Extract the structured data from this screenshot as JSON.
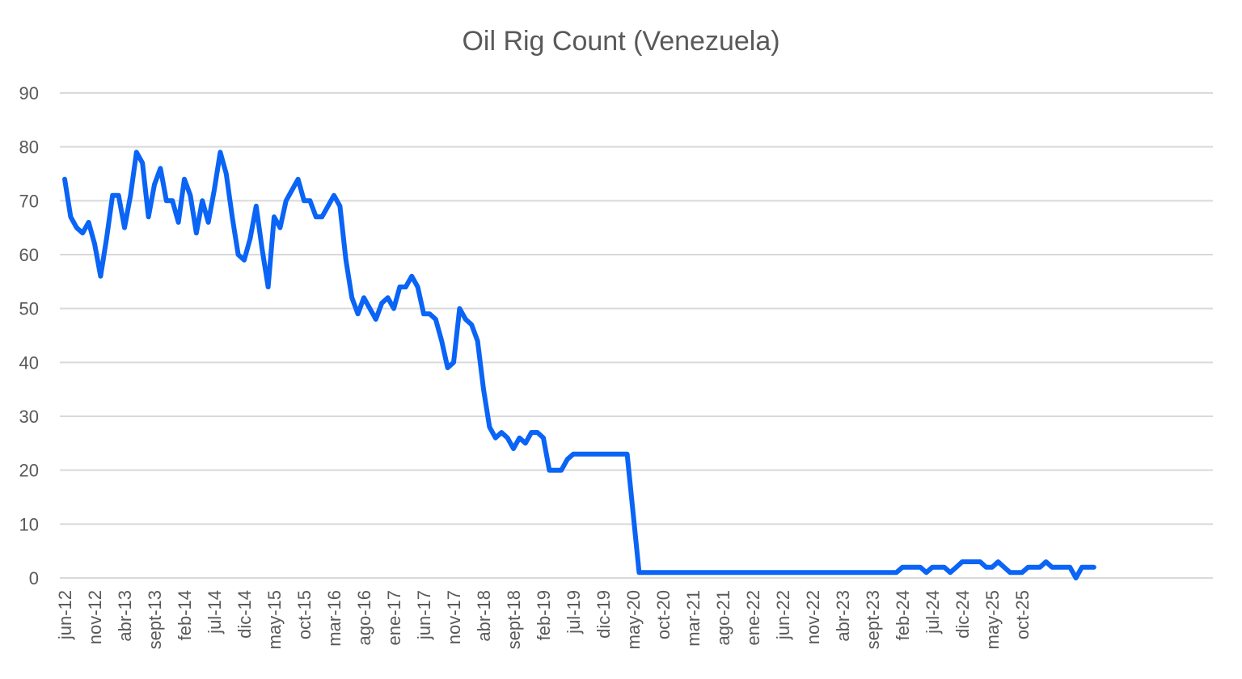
{
  "chart_data": {
    "type": "line",
    "title": "Oil Rig Count (Venezuela)",
    "xlabel": "",
    "ylabel": "",
    "ylim": [
      0,
      90
    ],
    "yticks": [
      0,
      10,
      20,
      30,
      40,
      50,
      60,
      70,
      80,
      90
    ],
    "grid": true,
    "legend": "none",
    "start_month": "2012-06",
    "end_month": "2026-01",
    "x_tick_labels": [
      "jun-12",
      "nov-12",
      "abr-13",
      "sept-13",
      "feb-14",
      "jul-14",
      "dic-14",
      "may-15",
      "oct-15",
      "mar-16",
      "ago-16",
      "ene-17",
      "jun-17",
      "nov-17",
      "abr-18",
      "sept-18",
      "feb-19",
      "jul-19",
      "dic-19",
      "may-20",
      "oct-20",
      "mar-21",
      "ago-21",
      "ene-22",
      "jun-22",
      "nov-22",
      "abr-23",
      "sept-23",
      "feb-24",
      "jul-24",
      "dic-24",
      "may-25",
      "oct-25"
    ],
    "series": [
      {
        "color": "#0a64f5",
        "values": [
          74,
          67,
          65,
          64,
          66,
          62,
          56,
          63,
          71,
          71,
          65,
          71,
          79,
          77,
          67,
          73,
          76,
          70,
          70,
          66,
          74,
          71,
          64,
          70,
          66,
          72,
          79,
          75,
          67,
          60,
          59,
          63,
          69,
          61,
          54,
          67,
          65,
          70,
          72,
          74,
          70,
          70,
          67,
          67,
          69,
          71,
          69,
          59,
          52,
          49,
          52,
          50,
          48,
          51,
          52,
          50,
          54,
          54,
          56,
          54,
          49,
          49,
          48,
          44,
          39,
          40,
          50,
          48,
          47,
          44,
          35,
          28,
          26,
          27,
          26,
          24,
          26,
          25,
          27,
          27,
          26,
          20,
          20,
          20,
          22,
          23,
          23,
          23,
          23,
          23,
          23,
          23,
          23,
          23,
          23,
          12,
          1,
          1,
          1,
          1,
          1,
          1,
          1,
          1,
          1,
          1,
          1,
          1,
          1,
          1,
          1,
          1,
          1,
          1,
          1,
          1,
          1,
          1,
          1,
          1,
          1,
          1,
          1,
          1,
          1,
          1,
          1,
          1,
          1,
          1,
          1,
          1,
          1,
          1,
          1,
          1,
          1,
          1,
          1,
          1,
          2,
          2,
          2,
          2,
          1,
          2,
          2,
          2,
          1,
          2,
          3,
          3,
          3,
          3,
          2,
          2,
          3,
          2,
          1,
          1,
          1,
          2,
          2,
          2,
          3,
          2,
          2,
          2,
          2,
          0,
          2,
          2,
          2
        ]
      }
    ]
  }
}
